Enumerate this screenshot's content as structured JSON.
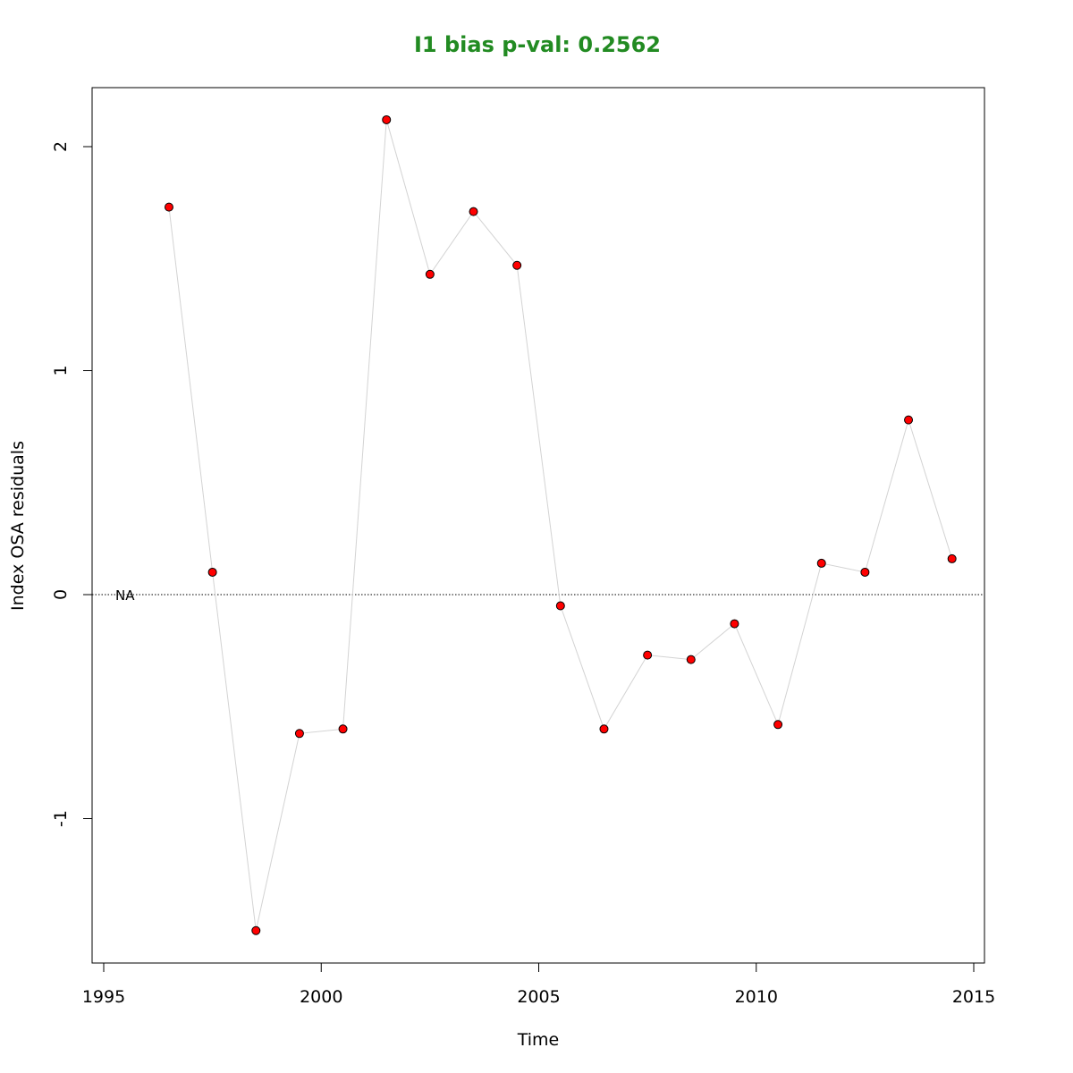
{
  "colors": {
    "title": "#228B22",
    "point_fill": "#FF0000",
    "point_stroke": "#000000",
    "line": "#D3D3D3",
    "axis": "#000000"
  },
  "chart_data": {
    "type": "scatter",
    "title": "I1 bias p-val: 0.2562",
    "xlabel": "Time",
    "ylabel": "Index OSA residuals",
    "xlim": [
      1995,
      2015
    ],
    "ylim": [
      -1.65,
      2.27
    ],
    "x_ticks": [
      1995,
      2000,
      2005,
      2010,
      2015
    ],
    "y_ticks": [
      -1,
      0,
      1,
      2
    ],
    "reference_line": {
      "y": 0,
      "style": "dotted"
    },
    "reference_label": "NA",
    "points_connected": true,
    "series": [
      {
        "x": [
          1996.5,
          1997.5,
          1998.5,
          1999.5,
          2000.5,
          2001.5,
          2002.5,
          2003.5,
          2004.5,
          2005.5,
          2006.5,
          2007.5,
          2008.5,
          2009.5,
          2010.5,
          2011.5,
          2012.5,
          2013.5,
          2014.5
        ],
        "y": [
          1.73,
          0.1,
          -1.5,
          -0.62,
          -0.6,
          2.12,
          1.43,
          1.71,
          1.47,
          -0.05,
          -0.6,
          -0.27,
          -0.29,
          -0.13,
          -0.58,
          0.14,
          0.1,
          0.78,
          0.16
        ]
      }
    ]
  }
}
